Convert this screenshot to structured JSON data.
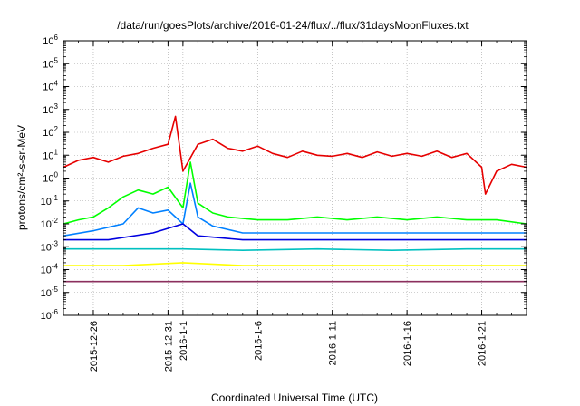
{
  "chart_data": {
    "type": "line",
    "title": "/data/run/goesPlots/archive/2016-01-24/flux/../flux/31daysMoonFluxes.txt",
    "xlabel": "Coordinated Universal Time (UTC)",
    "ylabel": "protons/cm²-s-sr-MeV",
    "y_scale": "log",
    "ylim": [
      1e-06,
      1000000.0
    ],
    "xlim": [
      "2015-12-24",
      "2016-01-24"
    ],
    "grid": true,
    "legend": "none",
    "x_ticks": [
      {
        "date": "2015-12-26",
        "label": "2015-12-26"
      },
      {
        "date": "2015-12-31",
        "label": "2015-12-31"
      },
      {
        "date": "2016-01-01",
        "label": "2016-1-1"
      },
      {
        "date": "2016-01-06",
        "label": "2016-1-6"
      },
      {
        "date": "2016-01-11",
        "label": "2016-1-11"
      },
      {
        "date": "2016-01-16",
        "label": "2016-1-16"
      },
      {
        "date": "2016-01-21",
        "label": "2016-1-21"
      }
    ],
    "y_ticks": [
      {
        "value": 1e-06,
        "base": "10",
        "exp": "-6"
      },
      {
        "value": 1e-05,
        "base": "10",
        "exp": "-5"
      },
      {
        "value": 0.0001,
        "base": "10",
        "exp": "-4"
      },
      {
        "value": 0.001,
        "base": "10",
        "exp": "-3"
      },
      {
        "value": 0.01,
        "base": "10",
        "exp": "-2"
      },
      {
        "value": 0.1,
        "base": "10",
        "exp": "-1"
      },
      {
        "value": 1,
        "base": "10",
        "exp": "0"
      },
      {
        "value": 10,
        "base": "10",
        "exp": "1"
      },
      {
        "value": 100,
        "base": "10",
        "exp": "2"
      },
      {
        "value": 1000.0,
        "base": "10",
        "exp": "3"
      },
      {
        "value": 10000.0,
        "base": "10",
        "exp": "4"
      },
      {
        "value": 100000.0,
        "base": "10",
        "exp": "5"
      },
      {
        "value": 1000000.0,
        "base": "10",
        "exp": "6"
      }
    ],
    "series": [
      {
        "color": "#e60000",
        "x": [
          "2015-12-24",
          "2015-12-25",
          "2015-12-26",
          "2015-12-27",
          "2015-12-28",
          "2015-12-29",
          "2015-12-30",
          "2015-12-31",
          "2015-12-31T12:00",
          "2016-01-01",
          "2016-01-02",
          "2016-01-03",
          "2016-01-04",
          "2016-01-05",
          "2016-01-06",
          "2016-01-07",
          "2016-01-08",
          "2016-01-09",
          "2016-01-10",
          "2016-01-11",
          "2016-01-12",
          "2016-01-13",
          "2016-01-14",
          "2016-01-15",
          "2016-01-16",
          "2016-01-17",
          "2016-01-18",
          "2016-01-19",
          "2016-01-20",
          "2016-01-21",
          "2016-01-21T06:00",
          "2016-01-22",
          "2016-01-23",
          "2016-01-24"
        ],
        "values": [
          3,
          6,
          8,
          5,
          9,
          12,
          20,
          30,
          500,
          2,
          30,
          50,
          20,
          15,
          25,
          12,
          8,
          15,
          10,
          9,
          12,
          8,
          14,
          9,
          12,
          9,
          15,
          8,
          12,
          3,
          0.2,
          2,
          4,
          3
        ]
      },
      {
        "color": "#00ff00",
        "x": [
          "2015-12-24",
          "2015-12-25",
          "2015-12-26",
          "2015-12-27",
          "2015-12-28",
          "2015-12-29",
          "2015-12-30",
          "2015-12-31",
          "2016-01-01",
          "2016-01-01T12:00",
          "2016-01-02",
          "2016-01-03",
          "2016-01-04",
          "2016-01-06",
          "2016-01-08",
          "2016-01-10",
          "2016-01-12",
          "2016-01-14",
          "2016-01-16",
          "2016-01-18",
          "2016-01-20",
          "2016-01-22",
          "2016-01-24"
        ],
        "values": [
          0.01,
          0.015,
          0.02,
          0.05,
          0.15,
          0.3,
          0.2,
          0.4,
          0.05,
          5,
          0.08,
          0.03,
          0.02,
          0.015,
          0.015,
          0.02,
          0.015,
          0.02,
          0.015,
          0.02,
          0.015,
          0.015,
          0.01
        ]
      },
      {
        "color": "#0080ff",
        "x": [
          "2015-12-24",
          "2015-12-26",
          "2015-12-28",
          "2015-12-29",
          "2015-12-30",
          "2015-12-31",
          "2016-01-01",
          "2016-01-01T12:00",
          "2016-01-02",
          "2016-01-03",
          "2016-01-05",
          "2016-01-08",
          "2016-01-11",
          "2016-01-14",
          "2016-01-17",
          "2016-01-20",
          "2016-01-24"
        ],
        "values": [
          0.003,
          0.005,
          0.01,
          0.05,
          0.03,
          0.04,
          0.01,
          0.6,
          0.02,
          0.008,
          0.004,
          0.004,
          0.004,
          0.004,
          0.004,
          0.004,
          0.004
        ]
      },
      {
        "color": "#0000e0",
        "x": [
          "2015-12-24",
          "2015-12-27",
          "2015-12-30",
          "2016-01-01",
          "2016-01-02",
          "2016-01-05",
          "2016-01-09",
          "2016-01-13",
          "2016-01-17",
          "2016-01-21",
          "2016-01-24"
        ],
        "values": [
          0.002,
          0.002,
          0.004,
          0.01,
          0.003,
          0.002,
          0.002,
          0.002,
          0.002,
          0.002,
          0.002
        ]
      },
      {
        "color": "#00c0c0",
        "x": [
          "2015-12-24",
          "2015-12-28",
          "2016-01-01",
          "2016-01-05",
          "2016-01-10",
          "2016-01-15",
          "2016-01-20",
          "2016-01-24"
        ],
        "values": [
          0.0008,
          0.0008,
          0.0008,
          0.0007,
          0.0008,
          0.0007,
          0.0008,
          0.0008
        ]
      },
      {
        "color": "#ffff00",
        "x": [
          "2015-12-24",
          "2015-12-28",
          "2016-01-01",
          "2016-01-05",
          "2016-01-10",
          "2016-01-15",
          "2016-01-20",
          "2016-01-24"
        ],
        "values": [
          0.00015,
          0.00015,
          0.0002,
          0.00015,
          0.00015,
          0.00015,
          0.00015,
          0.00015
        ]
      },
      {
        "color": "#8b2f5e",
        "x": [
          "2015-12-24",
          "2015-12-28",
          "2016-01-01",
          "2016-01-05",
          "2016-01-10",
          "2016-01-15",
          "2016-01-20",
          "2016-01-24"
        ],
        "values": [
          3e-05,
          3e-05,
          3e-05,
          3e-05,
          3e-05,
          3e-05,
          3e-05,
          3e-05
        ]
      }
    ]
  }
}
